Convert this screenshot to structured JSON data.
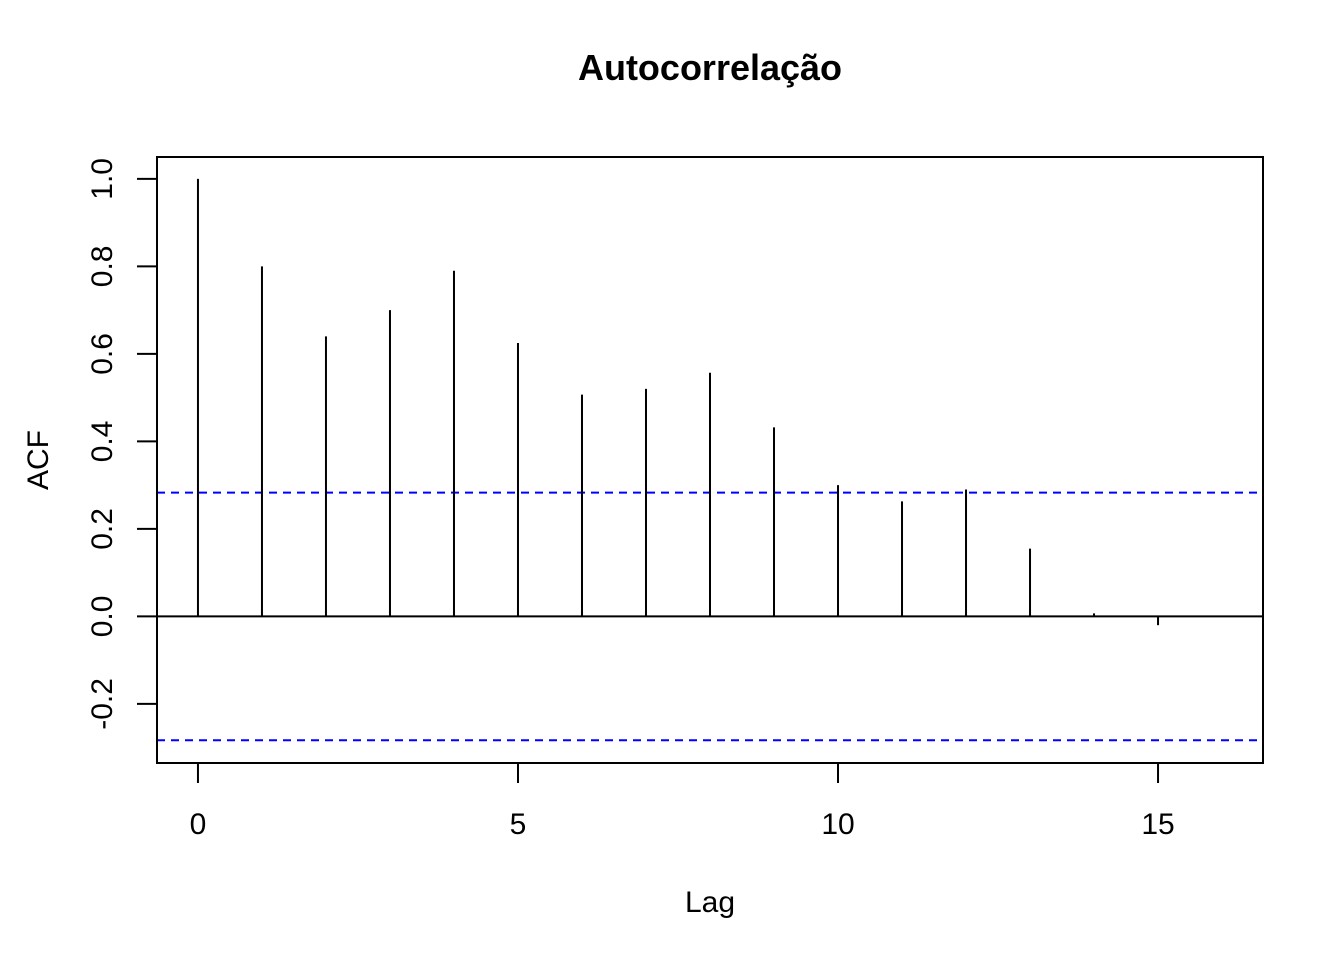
{
  "chart_data": {
    "type": "bar",
    "title": "Autocorrelação",
    "xlabel": "Lag",
    "ylabel": "ACF",
    "x": [
      0,
      1,
      2,
      3,
      4,
      5,
      6,
      7,
      8,
      9,
      10,
      11,
      12,
      13,
      14,
      15
    ],
    "values": [
      1.0,
      0.8,
      0.64,
      0.7,
      0.79,
      0.625,
      0.507,
      0.52,
      0.557,
      0.432,
      0.3,
      0.263,
      0.29,
      0.155,
      0.007,
      -0.02
    ],
    "xticks": [
      0,
      5,
      10,
      15
    ],
    "xtick_labels": [
      "0",
      "5",
      "10",
      "15"
    ],
    "yticks": [
      -0.2,
      0.0,
      0.2,
      0.4,
      0.6,
      0.8,
      1.0
    ],
    "ytick_labels": [
      "-0.2",
      "0.0",
      "0.2",
      "0.4",
      "0.6",
      "0.8",
      "1.0"
    ],
    "xlim": [
      -0.64,
      16.64
    ],
    "ylim": [
      -0.335,
      1.05
    ],
    "confidence_bounds": [
      0.283,
      -0.283
    ],
    "colors": {
      "bars": "#000000",
      "confidence": "#0000ff",
      "zero_line": "#000000"
    },
    "grid": false,
    "legend": false
  }
}
